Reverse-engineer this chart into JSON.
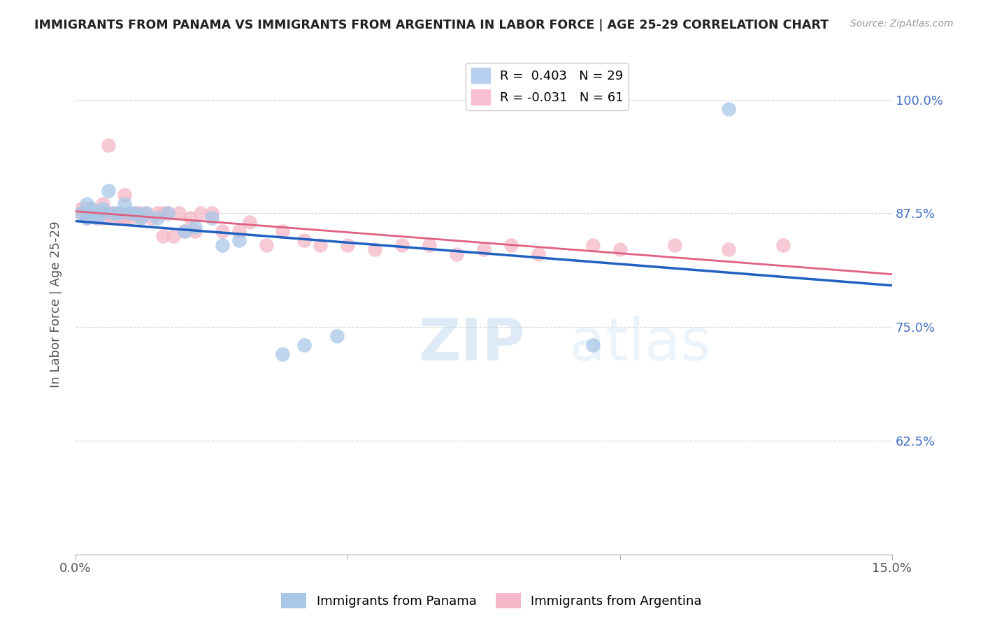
{
  "title": "IMMIGRANTS FROM PANAMA VS IMMIGRANTS FROM ARGENTINA IN LABOR FORCE | AGE 25-29 CORRELATION CHART",
  "source": "Source: ZipAtlas.com",
  "ylabel": "In Labor Force | Age 25-29",
  "xlim": [
    0.0,
    0.15
  ],
  "ylim": [
    0.5,
    1.05
  ],
  "xticks": [
    0.0,
    0.05,
    0.1,
    0.15
  ],
  "xticklabels": [
    "0.0%",
    "",
    "",
    "15.0%"
  ],
  "yticks": [
    0.625,
    0.75,
    0.875,
    1.0
  ],
  "yticklabels": [
    "62.5%",
    "75.0%",
    "87.5%",
    "100.0%"
  ],
  "panama_R": 0.403,
  "panama_N": 29,
  "argentina_R": -0.031,
  "argentina_N": 61,
  "panama_color": "#a8c8e8",
  "argentina_color": "#f4b8c8",
  "panama_line_color": "#2060c0",
  "argentina_line_color": "#e06080",
  "legend_panama_label": "Immigrants from Panama",
  "legend_argentina_label": "Immigrants from Argentina",
  "watermark_zip": "ZIP",
  "watermark_atlas": "atlas",
  "panama_x": [
    0.001,
    0.002,
    0.002,
    0.003,
    0.003,
    0.004,
    0.004,
    0.005,
    0.005,
    0.006,
    0.007,
    0.008,
    0.009,
    0.01,
    0.011,
    0.012,
    0.013,
    0.015,
    0.017,
    0.02,
    0.022,
    0.025,
    0.027,
    0.03,
    0.038,
    0.042,
    0.048,
    0.095,
    0.12
  ],
  "panama_y": [
    0.875,
    0.885,
    0.87,
    0.88,
    0.875,
    0.87,
    0.875,
    0.88,
    0.875,
    0.9,
    0.875,
    0.875,
    0.885,
    0.875,
    0.875,
    0.87,
    0.875,
    0.87,
    0.875,
    0.855,
    0.86,
    0.87,
    0.84,
    0.845,
    0.72,
    0.73,
    0.74,
    0.73,
    0.99
  ],
  "argentina_x": [
    0.001,
    0.001,
    0.002,
    0.002,
    0.002,
    0.003,
    0.003,
    0.004,
    0.004,
    0.005,
    0.005,
    0.005,
    0.006,
    0.006,
    0.007,
    0.007,
    0.008,
    0.008,
    0.008,
    0.009,
    0.009,
    0.01,
    0.01,
    0.01,
    0.011,
    0.011,
    0.012,
    0.012,
    0.013,
    0.014,
    0.015,
    0.016,
    0.016,
    0.017,
    0.018,
    0.019,
    0.02,
    0.021,
    0.022,
    0.023,
    0.025,
    0.027,
    0.03,
    0.032,
    0.035,
    0.038,
    0.042,
    0.045,
    0.05,
    0.055,
    0.06,
    0.065,
    0.07,
    0.075,
    0.08,
    0.085,
    0.095,
    0.1,
    0.11,
    0.12,
    0.13
  ],
  "argentina_y": [
    0.875,
    0.88,
    0.875,
    0.87,
    0.88,
    0.875,
    0.88,
    0.875,
    0.87,
    0.875,
    0.87,
    0.885,
    0.95,
    0.875,
    0.875,
    0.87,
    0.875,
    0.875,
    0.87,
    0.895,
    0.87,
    0.875,
    0.875,
    0.87,
    0.875,
    0.875,
    0.87,
    0.875,
    0.875,
    0.87,
    0.875,
    0.875,
    0.85,
    0.875,
    0.85,
    0.875,
    0.855,
    0.87,
    0.855,
    0.875,
    0.875,
    0.855,
    0.855,
    0.865,
    0.84,
    0.855,
    0.845,
    0.84,
    0.84,
    0.835,
    0.84,
    0.84,
    0.83,
    0.835,
    0.84,
    0.83,
    0.84,
    0.835,
    0.84,
    0.835,
    0.84
  ]
}
